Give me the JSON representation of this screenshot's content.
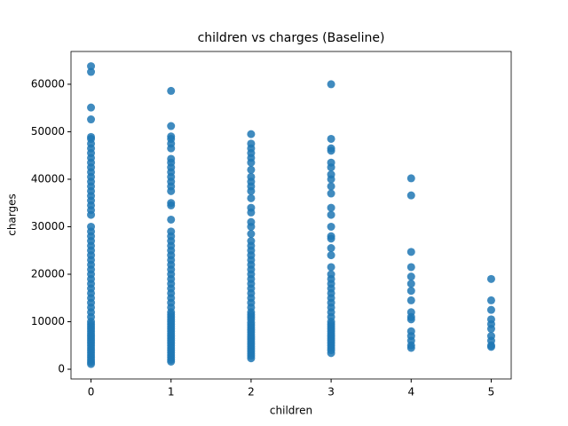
{
  "chart_data": {
    "type": "scatter",
    "title": "children vs charges (Baseline)",
    "x_label": "children",
    "y_label": "charges",
    "color": "#1f77b4",
    "xlim": [
      -0.25,
      5.25
    ],
    "xticks": [
      0,
      1,
      2,
      3,
      4,
      5
    ],
    "ylim": [
      -2050,
      66900
    ],
    "yticks": [
      0,
      10000,
      20000,
      30000,
      40000,
      50000,
      60000
    ],
    "x": [
      0,
      0,
      0,
      0,
      0,
      0,
      0,
      0,
      0,
      0,
      0,
      0,
      0,
      0,
      0,
      0,
      0,
      0,
      0,
      0,
      0,
      0,
      0,
      0,
      0,
      0,
      0,
      0,
      0,
      0,
      0,
      0,
      0,
      0,
      0,
      0,
      0,
      0,
      0,
      0,
      0,
      0,
      0,
      0,
      0,
      0,
      0,
      0,
      0,
      0,
      0,
      0,
      0,
      0,
      0,
      0,
      0,
      0,
      0,
      0,
      0,
      1,
      1,
      1,
      1,
      1,
      1,
      1,
      1,
      1,
      1,
      1,
      1,
      1,
      1,
      1,
      1,
      1,
      1,
      1,
      1,
      1,
      1,
      1,
      1,
      1,
      1,
      1,
      1,
      1,
      1,
      1,
      1,
      1,
      1,
      1,
      1,
      1,
      1,
      1,
      1,
      1,
      1,
      1,
      1,
      1,
      1,
      1,
      1,
      1,
      1,
      1,
      1,
      1,
      1,
      1,
      1,
      2,
      2,
      2,
      2,
      2,
      2,
      2,
      2,
      2,
      2,
      2,
      2,
      2,
      2,
      2,
      2,
      2,
      2,
      2,
      2,
      2,
      2,
      2,
      2,
      2,
      2,
      2,
      2,
      2,
      2,
      2,
      2,
      2,
      2,
      2,
      2,
      2,
      2,
      2,
      2,
      2,
      2,
      2,
      2,
      2,
      2,
      2,
      2,
      2,
      2,
      2,
      2,
      3,
      3,
      3,
      3,
      3,
      3,
      3,
      3,
      3,
      3,
      3,
      3,
      3,
      3,
      3,
      3,
      3,
      3,
      3,
      3,
      3,
      3,
      3,
      3,
      3,
      3,
      3,
      3,
      3,
      3,
      3,
      3,
      3,
      3,
      3,
      3,
      3,
      3,
      3,
      3,
      3,
      3,
      4,
      4,
      4,
      4,
      4,
      4,
      4,
      4,
      4,
      4,
      4,
      4,
      4,
      4,
      4,
      4,
      5,
      5,
      5,
      5,
      5,
      5,
      5,
      5,
      5,
      5
    ],
    "y": [
      1100,
      1500,
      2000,
      2500,
      3000,
      3500,
      4000,
      4500,
      5000,
      5500,
      6000,
      6500,
      7000,
      7500,
      8000,
      8500,
      9000,
      9500,
      10000,
      11000,
      12000,
      13000,
      14000,
      15000,
      16000,
      17000,
      18000,
      19000,
      20000,
      21000,
      22000,
      23000,
      24000,
      25000,
      26000,
      27000,
      28000,
      29000,
      30000,
      32500,
      33500,
      34500,
      35500,
      36500,
      37500,
      38500,
      39500,
      40500,
      41500,
      42500,
      43500,
      44500,
      45500,
      46500,
      47500,
      48500,
      48900,
      52600,
      55100,
      62600,
      63800,
      1600,
      2000,
      2500,
      3000,
      3500,
      4000,
      4500,
      5000,
      5500,
      6000,
      6500,
      7000,
      7500,
      8000,
      8500,
      9000,
      9500,
      10000,
      10500,
      11000,
      11500,
      12000,
      13000,
      14000,
      15000,
      16000,
      17000,
      18000,
      19000,
      20000,
      21000,
      22000,
      23000,
      24000,
      25000,
      26000,
      27000,
      28000,
      29000,
      31500,
      34500,
      35000,
      37500,
      38500,
      39500,
      40500,
      41500,
      42500,
      43500,
      44300,
      46500,
      47500,
      48500,
      49000,
      51200,
      58600,
      2300,
      2800,
      3300,
      3800,
      4300,
      4800,
      5300,
      5800,
      6300,
      6800,
      7300,
      7800,
      8300,
      8800,
      9300,
      9800,
      10500,
      11000,
      11500,
      12000,
      13000,
      14000,
      15000,
      16000,
      17000,
      18000,
      19000,
      20000,
      21000,
      22000,
      23000,
      24000,
      25000,
      26000,
      27000,
      28500,
      30000,
      31000,
      33000,
      34000,
      36000,
      37500,
      38500,
      39500,
      40500,
      42000,
      43500,
      44500,
      45500,
      46500,
      47500,
      49500,
      3400,
      4000,
      4500,
      5000,
      5500,
      6000,
      6500,
      7000,
      7500,
      8000,
      8500,
      9000,
      9500,
      10000,
      11000,
      12000,
      13000,
      14000,
      15000,
      16000,
      17000,
      18000,
      19000,
      20000,
      21500,
      24000,
      25500,
      27500,
      28000,
      30000,
      32500,
      34000,
      37000,
      38500,
      40000,
      41000,
      42500,
      43500,
      46000,
      46500,
      48500,
      60000,
      4500,
      5000,
      6000,
      7000,
      8000,
      10500,
      11000,
      12000,
      14500,
      16500,
      18000,
      19500,
      21500,
      24700,
      36600,
      40200,
      4700,
      5000,
      6000,
      7000,
      8500,
      9500,
      10500,
      12500,
      14500,
      19000
    ]
  }
}
